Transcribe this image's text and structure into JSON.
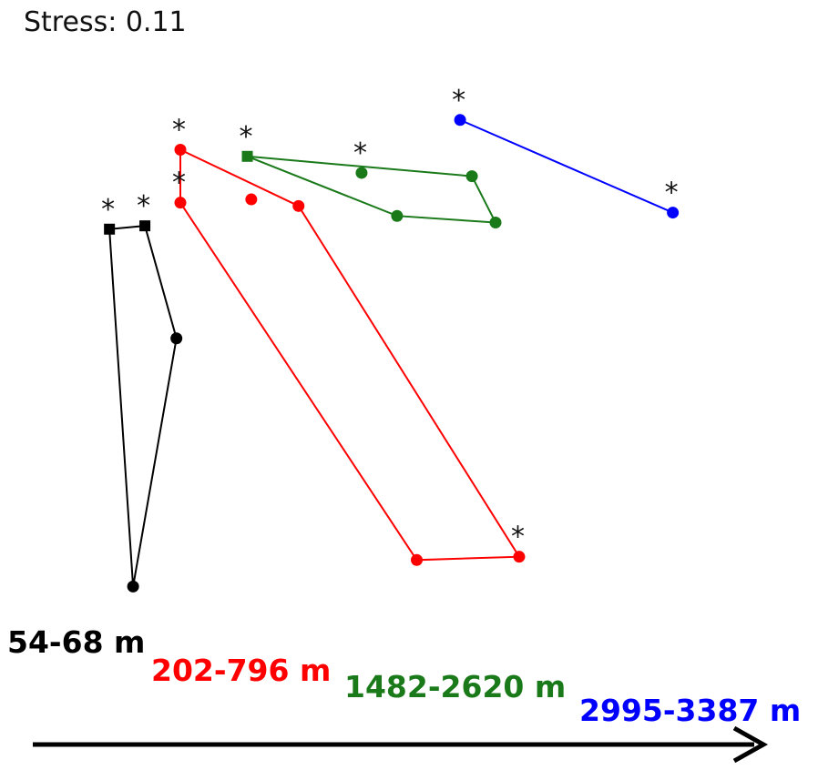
{
  "chart_data": {
    "type": "scatter",
    "title": "Stress: 0.11",
    "xlabel": "",
    "ylabel": "",
    "grid": false,
    "series": [
      {
        "name": "54-68 m",
        "color": "#000000",
        "points": [
          {
            "x": -0.78,
            "y": 0.4,
            "starred": true,
            "marker": "square"
          },
          {
            "x": -0.69,
            "y": 0.41,
            "starred": true,
            "marker": "square"
          },
          {
            "x": -0.61,
            "y": 0.07,
            "starred": false,
            "marker": "circle"
          },
          {
            "x": -0.72,
            "y": -0.68,
            "starred": false,
            "marker": "circle"
          }
        ]
      },
      {
        "name": "202-796 m",
        "color": "#ff0000",
        "points": [
          {
            "x": -0.6,
            "y": 0.64,
            "starred": true,
            "marker": "circle"
          },
          {
            "x": -0.3,
            "y": 0.47,
            "starred": false,
            "marker": "circle"
          },
          {
            "x": 0.26,
            "y": -0.59,
            "starred": true,
            "marker": "circle"
          },
          {
            "x": 0.0,
            "y": -0.6,
            "starred": false,
            "marker": "circle"
          },
          {
            "x": -0.6,
            "y": 0.48,
            "starred": true,
            "marker": "circle"
          }
        ],
        "extra_points": [
          {
            "x": -0.42,
            "y": 0.49,
            "starred": false,
            "marker": "circle"
          }
        ]
      },
      {
        "name": "1482-2620 m",
        "color": "#1a7a1a",
        "points": [
          {
            "x": -0.43,
            "y": 0.62,
            "starred": true,
            "marker": "square"
          },
          {
            "x": 0.14,
            "y": 0.56,
            "starred": false,
            "marker": "circle"
          },
          {
            "x": 0.2,
            "y": 0.42,
            "starred": false,
            "marker": "circle"
          },
          {
            "x": -0.05,
            "y": 0.44,
            "starred": false,
            "marker": "circle"
          }
        ],
        "extra_points": [
          {
            "x": -0.14,
            "y": 0.57,
            "starred": true,
            "marker": "circle"
          }
        ]
      },
      {
        "name": "2995-3387 m",
        "color": "#0000ff",
        "points": [
          {
            "x": 0.11,
            "y": 0.73,
            "starred": true,
            "marker": "circle"
          },
          {
            "x": 0.65,
            "y": 0.45,
            "starred": true,
            "marker": "circle"
          }
        ]
      }
    ],
    "xlim": [
      -1.0,
      1.0
    ],
    "ylim": [
      -0.8,
      0.9
    ]
  }
}
